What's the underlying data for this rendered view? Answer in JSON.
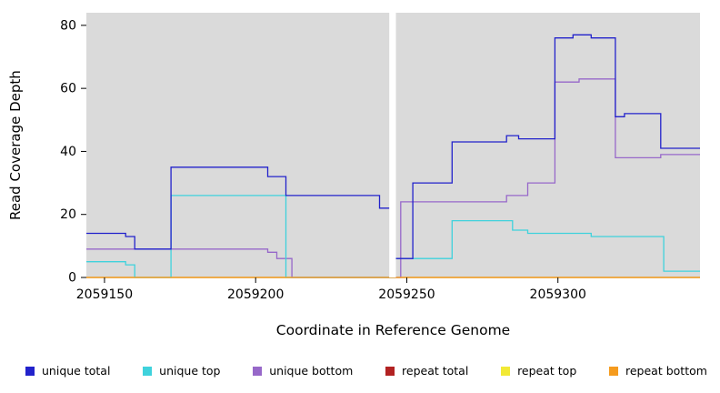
{
  "chart_data": {
    "type": "line",
    "step": true,
    "title": "",
    "xlabel": "Coordinate in Reference Genome",
    "ylabel": "Read Coverage Depth",
    "xlim": [
      2059144,
      2059347
    ],
    "ylim": [
      0,
      80
    ],
    "y_display_max": 84,
    "xticks": [
      2059150,
      2059200,
      2059250,
      2059300
    ],
    "yticks": [
      0,
      20,
      40,
      60,
      80
    ],
    "grid": false,
    "plot_background": "#dadada",
    "gap": {
      "x_start": 2059244.2,
      "x_end": 2059246.4
    },
    "legend_position": "bottom",
    "series": [
      {
        "name": "unique total",
        "color": "#2222cb",
        "points": [
          [
            2059144,
            14
          ],
          [
            2059157,
            13
          ],
          [
            2059160,
            9
          ],
          [
            2059172,
            35
          ],
          [
            2059204,
            32
          ],
          [
            2059210,
            26
          ],
          [
            2059241,
            22
          ],
          [
            2059246,
            6
          ],
          [
            2059252,
            30
          ],
          [
            2059265,
            43
          ],
          [
            2059283,
            45
          ],
          [
            2059287,
            44
          ],
          [
            2059299,
            76
          ],
          [
            2059305,
            77
          ],
          [
            2059311,
            76
          ],
          [
            2059319,
            51
          ],
          [
            2059322,
            52
          ],
          [
            2059334,
            41
          ],
          [
            2059347,
            41
          ]
        ]
      },
      {
        "name": "unique top",
        "color": "#3fd2dc",
        "points": [
          [
            2059144,
            5
          ],
          [
            2059157,
            4
          ],
          [
            2059160,
            0
          ],
          [
            2059172,
            26
          ],
          [
            2059210,
            0
          ],
          [
            2059246,
            6
          ],
          [
            2059265,
            18
          ],
          [
            2059285,
            15
          ],
          [
            2059290,
            14
          ],
          [
            2059311,
            13
          ],
          [
            2059335,
            2
          ],
          [
            2059347,
            2
          ]
        ]
      },
      {
        "name": "unique bottom",
        "color": "#9768c9",
        "points": [
          [
            2059144,
            9
          ],
          [
            2059204,
            8
          ],
          [
            2059207,
            6
          ],
          [
            2059212,
            0
          ],
          [
            2059248,
            24
          ],
          [
            2059283,
            26
          ],
          [
            2059290,
            30
          ],
          [
            2059299,
            62
          ],
          [
            2059307,
            63
          ],
          [
            2059319,
            38
          ],
          [
            2059334,
            39
          ],
          [
            2059347,
            39
          ]
        ]
      },
      {
        "name": "repeat total",
        "color": "#b22222",
        "points": [
          [
            2059144,
            0
          ],
          [
            2059347,
            0
          ]
        ]
      },
      {
        "name": "repeat top",
        "color": "#f2e935",
        "points": [
          [
            2059144,
            0
          ],
          [
            2059347,
            0
          ]
        ]
      },
      {
        "name": "repeat bottom",
        "color": "#f59b1e",
        "points": [
          [
            2059144,
            0
          ],
          [
            2059347,
            0
          ]
        ]
      }
    ]
  }
}
